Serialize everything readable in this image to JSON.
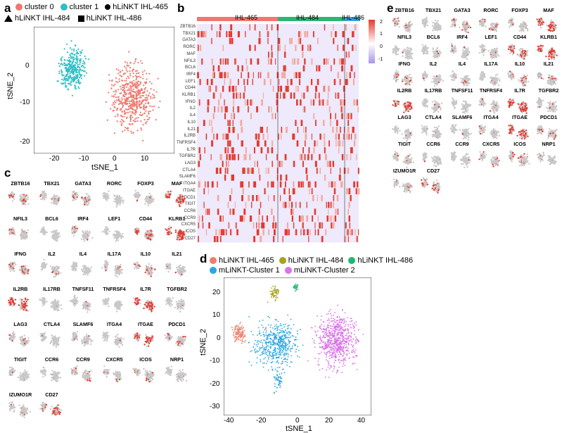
{
  "panels": {
    "a": {
      "letter": "a",
      "legend": {
        "cluster0": "cluster 0",
        "cluster1": "cluster 1",
        "ihl465": "hLiNKT IHL-465",
        "ihl484": "hLiNKT IHL-484",
        "ihl486": "hLiNKT IHL-486"
      },
      "xlabel": "tSNE_1",
      "ylabel": "tSNE_2",
      "xticks": [
        "-20",
        "-10",
        "0",
        "10"
      ],
      "yticks": [
        "0",
        "-10",
        "-20"
      ]
    },
    "b": {
      "letter": "b",
      "groups": [
        "IHL-465",
        "IHL-484",
        "IHL-486"
      ],
      "scale_ticks": [
        "2",
        "1",
        "0",
        "-1"
      ],
      "genes": [
        "ZBTB16",
        "TBX21",
        "GATA3",
        "RORC",
        "MAF",
        "NFIL3",
        "BCL6",
        "IRF4",
        "LEF1",
        "CD44",
        "KLRB1",
        "IFNG",
        "IL2",
        "IL4",
        "IL10",
        "IL21",
        "IL2RB",
        "TNFRSF4",
        "IL7R",
        "TGFBR2",
        "LAG3",
        "CTLA4",
        "SLAMF6",
        "ITGA4",
        "ITGAE",
        "PDCD1",
        "TIGIT",
        "CCR6",
        "CCR9",
        "CXCR5",
        "ICOS",
        "CD27"
      ]
    },
    "c": {
      "letter": "c",
      "genes": [
        "ZBTB16",
        "TBX21",
        "GATA3",
        "RORC",
        "FOXP3",
        "MAF",
        "NFIL3",
        "BCL6",
        "IRF4",
        "LEF1",
        "CD44",
        "KLRB1",
        "IFNG",
        "IL2",
        "IL4",
        "IL17A",
        "IL10",
        "IL21",
        "IL2RB",
        "IL17RB",
        "TNFSF11",
        "TNFRSF4",
        "IL7R",
        "TGFBR2",
        "LAG3",
        "CTLA4",
        "SLAMF6",
        "ITGA4",
        "ITGAE",
        "PDCD1",
        "TIGIT",
        "CCR6",
        "CCR9",
        "CXCR5",
        "ICOS",
        "NRP1",
        "IZUMO1R",
        "CD27"
      ]
    },
    "d": {
      "letter": "d",
      "legend": {
        "ihl465": "hLiNKT IHL-465",
        "ihl484": "hLiNKT IHL-484",
        "ihl486": "hLiNKT IHL-486",
        "mc1": "mLiNKT-Cluster 1",
        "mc2": "mLiNKT-Cluster 2"
      },
      "xlabel": "tSNE_1",
      "ylabel": "tSNE_2",
      "xticks": [
        "-40",
        "-20",
        "0",
        "20",
        "40"
      ],
      "yticks": [
        "20",
        "10",
        "0",
        "-10",
        "-20",
        "-30"
      ]
    },
    "e": {
      "letter": "e",
      "genes": [
        "ZBTB16",
        "TBX21",
        "GATA3",
        "RORC",
        "FOXP3",
        "MAF",
        "NFIL3",
        "BCL6",
        "IRF4",
        "LEF1",
        "CD44",
        "KLRB1",
        "IFNG",
        "IL2",
        "IL4",
        "IL17A",
        "IL10",
        "IL21",
        "IL2RB",
        "IL17RB",
        "TNFSF11",
        "TNFRSF4",
        "IL7R",
        "TGFBR2",
        "LAG3",
        "CTLA4",
        "SLAMF6",
        "ITGA4",
        "ITGAE",
        "PDCD1",
        "TIGIT",
        "CCR6",
        "CCR9",
        "CXCR5",
        "ICOS",
        "NRP1",
        "IZUMO1R",
        "CD27"
      ]
    }
  },
  "colors": {
    "cluster0": "#f0776d",
    "cluster1": "#2ebfc4",
    "ihl465": "#e8806c",
    "ihl484": "#a9a21d",
    "ihl486": "#22b574",
    "mc1": "#2ba6e0",
    "mc2": "#d974e8",
    "heat_red": "#e33a2f",
    "heat_purple": "#a996e8",
    "gray": "#c8c8c8"
  }
}
